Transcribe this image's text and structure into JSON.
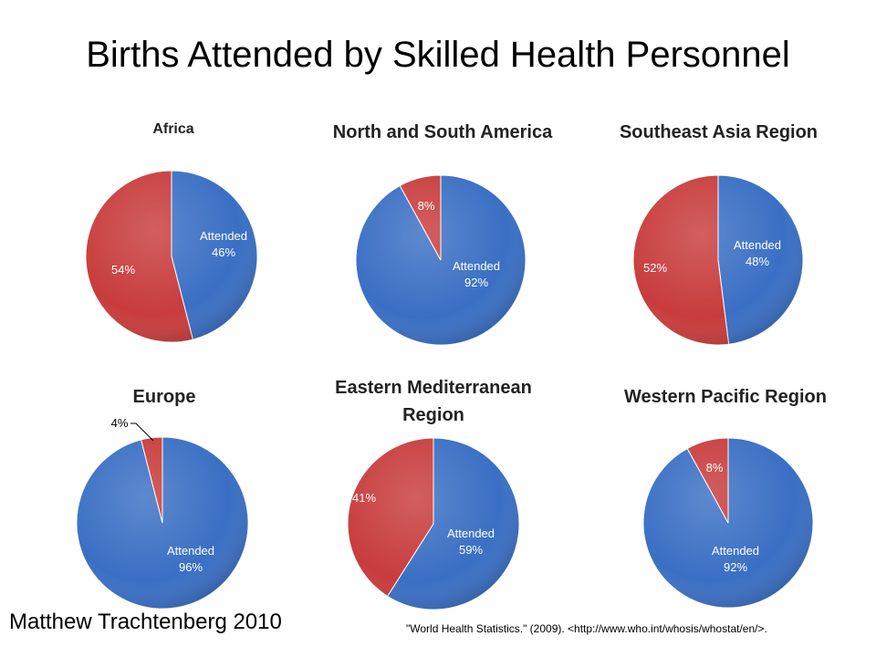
{
  "title": "Births Attended by Skilled Health Personnel",
  "author": "Matthew Trachtenberg 2010",
  "citation": "\"World Health Statistics.\"  (2009).  <http://www.who.int/whosis/whostat/en/>.",
  "colors": {
    "attended": "#3a6fc4",
    "not_attended": "#c83c3c"
  },
  "chart_data": [
    {
      "type": "pie",
      "title": "Africa",
      "slices": [
        {
          "name": "Attended",
          "value": 46,
          "label": "Attended\n46%"
        },
        {
          "name": "",
          "value": 54,
          "label": "54%"
        }
      ]
    },
    {
      "type": "pie",
      "title": "North and South America",
      "slices": [
        {
          "name": "Attended",
          "value": 92,
          "label": "Attended\n92%"
        },
        {
          "name": "",
          "value": 8,
          "label": "8%"
        }
      ]
    },
    {
      "type": "pie",
      "title": "Southeast Asia Region",
      "slices": [
        {
          "name": "Attended",
          "value": 48,
          "label": "Attended\n48%"
        },
        {
          "name": "",
          "value": 52,
          "label": "52%"
        }
      ]
    },
    {
      "type": "pie",
      "title": "Europe",
      "slices": [
        {
          "name": "Attended",
          "value": 96,
          "label": "Attended\n96%"
        },
        {
          "name": "",
          "value": 4,
          "label": "4%"
        }
      ]
    },
    {
      "type": "pie",
      "title": "Eastern Mediterranean Region",
      "slices": [
        {
          "name": "Attended",
          "value": 59,
          "label": "Attended\n59%"
        },
        {
          "name": "",
          "value": 41,
          "label": "41%"
        }
      ]
    },
    {
      "type": "pie",
      "title": "Western Pacific Region",
      "slices": [
        {
          "name": "Attended",
          "value": 92,
          "label": "Attended\n92%"
        },
        {
          "name": "",
          "value": 8,
          "label": "8%"
        }
      ]
    }
  ]
}
